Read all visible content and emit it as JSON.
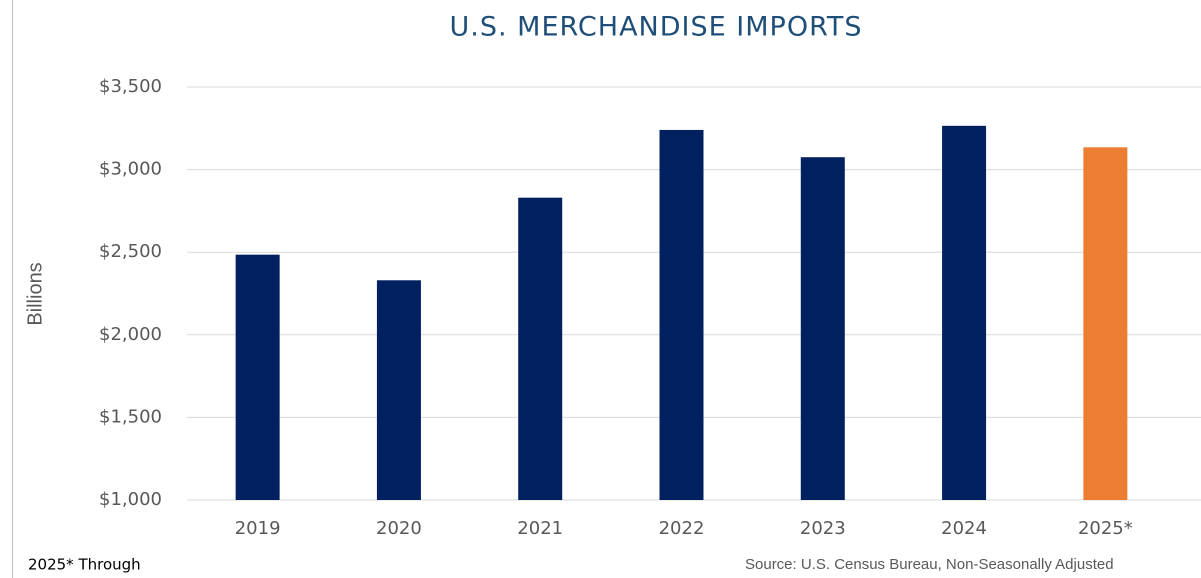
{
  "chart_data": {
    "type": "bar",
    "title": "U.S. MERCHANDISE IMPORTS",
    "y_label": "Billions",
    "categories": [
      "2019",
      "2020",
      "2021",
      "2022",
      "2023",
      "2024",
      "2025*"
    ],
    "values": [
      2485,
      2330,
      2830,
      3240,
      3075,
      3265,
      3135
    ],
    "colors": [
      "#002060",
      "#002060",
      "#002060",
      "#002060",
      "#002060",
      "#002060",
      "#ed7d31"
    ],
    "ylim": [
      1000,
      3500
    ],
    "yticks": [
      {
        "value": 1000,
        "label": "$1,000"
      },
      {
        "value": 1500,
        "label": "$1,500"
      },
      {
        "value": 2000,
        "label": "$2,000"
      },
      {
        "value": 2500,
        "label": "$2,500"
      },
      {
        "value": 3000,
        "label": "$3,000"
      },
      {
        "value": 3500,
        "label": "$3,500"
      }
    ],
    "grid": true,
    "footnote": "2025* Through",
    "source": "Source: U.S. Census Bureau, Non-Seasonally Adjusted"
  }
}
